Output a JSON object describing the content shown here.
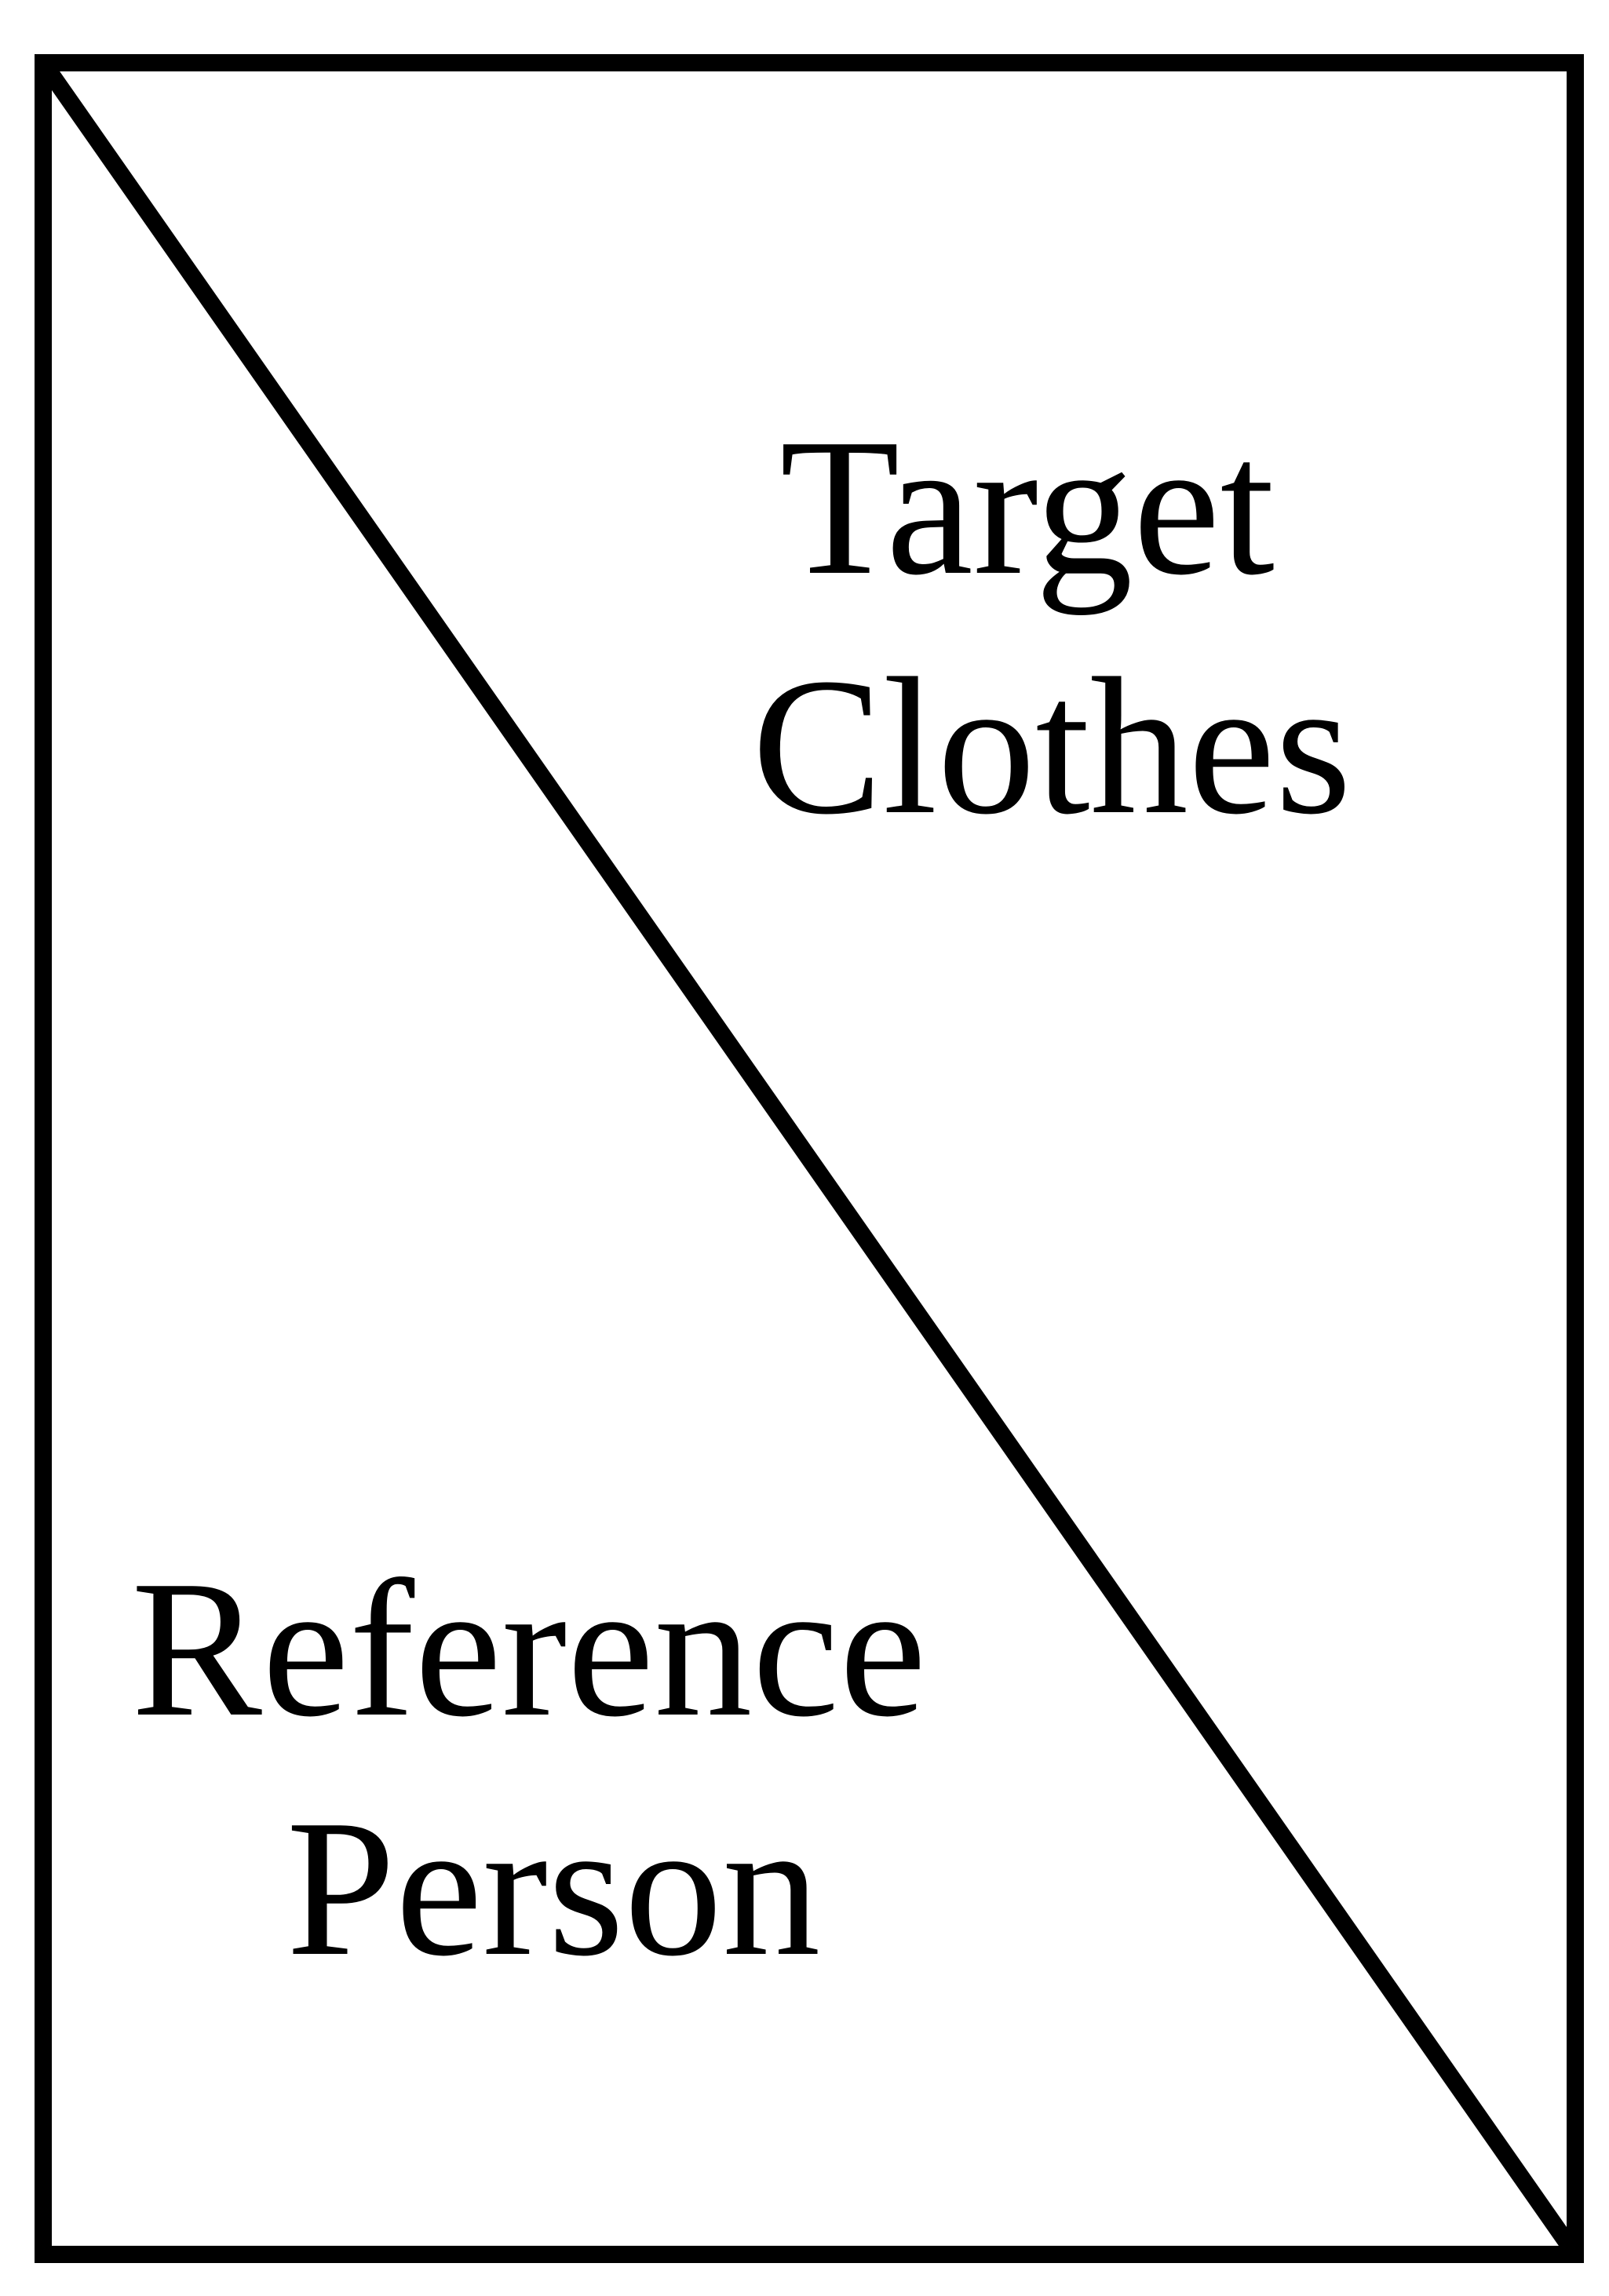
{
  "diagram": {
    "top_right_label": {
      "line1": "Target",
      "line2": "Clothes"
    },
    "bottom_left_label": {
      "line1": "Reference",
      "line2": "Person"
    },
    "stroke_color": "#000000",
    "background_color": "#ffffff"
  }
}
